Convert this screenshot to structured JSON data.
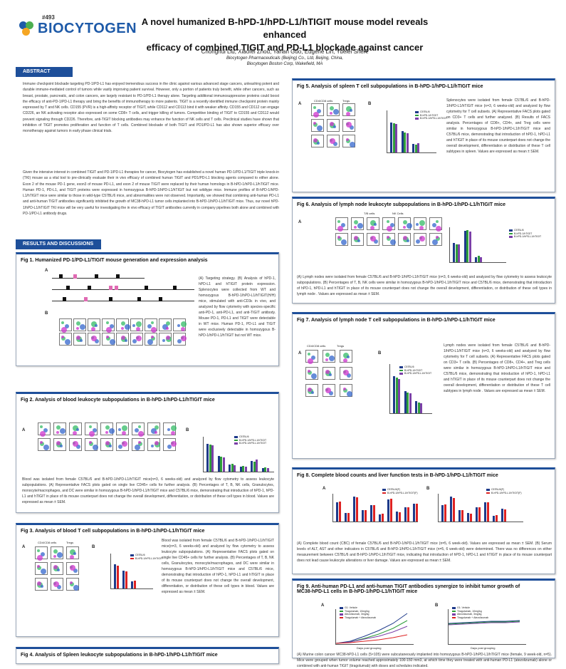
{
  "header": {
    "poster_number": "#493",
    "logo_text": "BIOCYTOGEN",
    "title_line1": "A novel humanized B-hPD-1/hPD-L1/hTIGIT mouse model reveals enhanced",
    "title_line2": "efficacy of combined TIGIT and PD-L1 blockade against cancer",
    "authors": "Chonghui Liu, Xiaofei Zhou, Yanan Guo, Eugene Lin, Yuelei Shen.",
    "affiliation1": "Biocytogen Pharmaceuticals (Beijing) Co., Ltd, Beijing, China,",
    "affiliation2": "Biocytogen Boston Corp, Wakefield, MA"
  },
  "abstract": {
    "heading": "ABSTRACT",
    "para1": "Immune checkpoint blockade targeting PD-1/PD-L1 has enjoyed tremendous success in the clinic against various advanced stage cancers, unleashing potent and durable immune-mediated control of tumors while vastly improving patient survival. However, only a portion of patients truly benefit, while other cancers, such as breast, prostate, pancreatic, and colon cancers, are largely resistant to PD-1/PD-L1 therapy alone. Targeting additional immunosuppressive proteins could boost the efficacy of anti-PD-1/PD-L1 therapy and bring the benefits of immunotherapy to more patients. TIGIT is a recently identified immune checkpoint protein mainly expressed by T and NK cells. CD155 (PVR) is a high-affinity receptor of TIGIT, while CD112 and CD113 bind it with weaker affinity. CD155 and CD112 can engage CD226, an NK activating receptor also expressed on some CD8+ T cells, and trigger killing of tumors. Competitive binding of TIGIT to CD155 and CD112 would prevent signaling through CD226. Therefore, anti-TIGIT blocking antibodies may enhance the function of NK cells and T cells. Preclinical studies have shown that inhibition of TIGIT promotes proliferation and function of T cells. Combined blockade of both TIGIT and PD1/PD-L1 has also shown superior efficacy over monotherapy against tumors in early phase clinical trials.",
    "para2": "Given the intensive interest in combined TIGIT and PD-1/PD-L1 therapies for cancer, Biocytogen has established a novel human PD-1/PD-L1/TIGIT triple knock-in (TKI) mouse as a vital tool to pre-clinically evaluate their in vivo efficacy of combined human TIGIT and PD1/PD-L1 blocking agents compared to either alone. Exon 2 of the mouse PD-1 gene, exon3 of mouse PD-L1, and exon 2 of mouse TIGIT were replaced by their human homologs in B-hPD-1/hPD-L1/hTIGIT mice. Human PD-1, PD-L1, and TIGIT proteins were expressed in homozygous B-hPD-1/hPD-L1/hTIGIT but not wildtype mice. Immune profiles of B-hPD-1/hPD-L1/hTIGIT mice were similar to those in wild-type C57BL/6 mice, and abnormalities were not observed. Importantly, we showed that combining anti-human PD-L1 and anti-human TIGIT antibodies significantly inhibited the growth of MC38-hPD-L1 tumor cells implanted into B-hPD-1/hPD-L1/hTIGIT mice. Thus, our novel hPD-1/hPD-L1/hTIGIT TKI mice will be very useful for investigating the in vivo efficacy of TIGIT antibodies currently in company pipelines both alone and combined with PD-1/PD-L1 antibody drugs."
  },
  "results_heading": "RESULTS AND DISCUSSIONS",
  "common": {
    "groups": [
      "C57BL/6",
      "B-hPD-1/hPD-L1/hTIGIT"
    ],
    "colors": {
      "wt": "#1e3a8a",
      "homo": "#2e9e3a",
      "het": "#7b3fa8",
      "pink": "#e06ab3",
      "red": "#d22",
      "accent": "#1e4f9a"
    },
    "dot_colors": [
      "#3b6",
      "#36c",
      "#c3c"
    ]
  },
  "fig1": {
    "title": "Fig 1. Humanized PD-1/PD-L1/TIGIT mouse generation and expression analysis",
    "text": "(A) Targeting strategy. (B) Analysis of hPD-1, hPD-L1 and hTIGIT protein expression. Splenocytes were collected from WT and homozygous B-hPD-1/hPD-L1/hTIGIT(H/H) mice, stimulated with anti-CD3ε in vivo, and analyzed by flow cytometry with species-specific anti-PD-1, anti-PD-L1, and anti-TIGIT antibody. Mouse PD-1, PD-L1 and TIGIT were detectable in WT mice. Human PD-1, PD-L1 and TIGIT were exclusively detectable in homozygous B-hPD-1/hPD-L1/hTIGIT but not WT mice.",
    "label_a": "A",
    "label_b": "B",
    "genes": [
      "B-hPD-1",
      "B-hPD-L1",
      "B-hTIGIT"
    ],
    "flow_headers": [
      "Anti-CD3ε-stimulated",
      "Anti-CD3ε-stimulated",
      "Anti-CD3ε-stimulated"
    ]
  },
  "fig2": {
    "title": "Fig 2. Analysis of blood leukocyte subpopulations in B-hPD-1/hPD-L1/hTIGIT mice",
    "label_a": "A",
    "label_b": "B",
    "columns": [
      "T/B cells",
      "NK Cells",
      "Dendritic cells",
      "Granulocytes",
      "Monocytes/ Macrophages"
    ],
    "rows": [
      "C57BL/6",
      "B-hPD-1/hPD-L1/ hTIGIT"
    ],
    "yaxis": "% in CD45 cells of blood",
    "categories": [
      "T cells",
      "B cells",
      "NK cells",
      "Granulocytes",
      "DC cells",
      "Monocytes"
    ],
    "legend": [
      "C57BL/6",
      "B-hPD-1/hPD-L1/hTIGIT",
      "B-hPD-1/hPD-L1/hTIGIT"
    ],
    "text": "Blood was isolated from female C57BL/6 and B-hPD-1/hPD-L1/hTIGIT mice(n=3, 6 weeks-old) and analyzed by flow cytometry to assess leukocyte subpopulations. (A) Representative FACS plots gated on single live CD45+ cells for further analysis. (B) Percentages of T, B, NK cells, Granulocytes, monocyte/macrophages, and DC were similar in homozygous B-hPD-1/hPD-L1/hTIGIT mice and C57BL/6 mice, demonstrating that introduction of hPD-1, hPD-L1 and hTIGIT in place of its mouse counterpart does not change the overall development, differentiation, or distribution of these cell types in blood. Values are expressed as mean ± SEM."
  },
  "fig3": {
    "title": "Fig 3. Analysis of blood T cell subpopulations in B-hPD-1/hPD-L1/hTIGIT mice",
    "label_a": "A",
    "label_b": "B",
    "col_headers": [
      "CD4/CD8 cells",
      "Tregs"
    ],
    "legend": [
      "C57BL/6",
      "B-hPD-1/hPD-L1/hTIGIT"
    ],
    "text": "Blood was isolated from female C57BL/6 and B-hPD-1/hPD-L1/hTIGIT mice(n=3, 6 weeks-old) and analyzed by flow cytometry to assess leukocyte subpopulations. (A) Representative FACS plots gated on single live CD45+ cells for further analysis. (B) Percentages of T, B, NK cells, Granulocytes, monocyte/macrophages, and DC were similar in homozygous B-hPD-1/hPD-L1/hTIGIT mice and C57BL/6 mice, demonstrating that introduction of hPD-1, hPD-L1 and hTIGIT in place of its mouse counterpart does not change the overall development, differentiation, or distribution of these cell types in blood. Values are expressed as mean ± SEM."
  },
  "fig4": {
    "title": "Fig 4. Analysis of Spleen leukocyte subpopulations in B-hPD-1/hPD-L1/hTIGIT mice"
  },
  "fig5": {
    "title": "Fig 5. Analysis of spleen T cell subpopulations in B-hPD-1/hPD-L1/hTIGIT mice",
    "label_a": "A",
    "label_b": "B",
    "col_headers": [
      "CD4/CD8 cells",
      "Tregs"
    ],
    "legend": [
      "C57BL/6",
      "B-hPD-1/hTIGIT",
      "B-hPD-1/hPD-L1/hTIGIT"
    ],
    "text": "Splenocytes were isolated from female C57BL/6 and B-hPD-1/hPD-L1/hTIGIT mice (n=3, 6 weeks-old) and analyzed by flow cytometry for T cell subsets. (A) Representative FACS plots gated on CD3+ T cells and further analyzed. (B) Results of FACS analysis. Percentages of CD8+, CD4+, and Treg cells were similar in homozygous B-hPD-1/hPD-L1/hTIGIT mice and C57BL/6 mice, demonstrating that introduction of hPD-1, hPD-L1 and hTIGIT in place of its mouse counterpart does not change the overall development, differentiation or distribution of these T cell subtypes in spleen. Values are expressed as mean ± SEM."
  },
  "fig6": {
    "title": "Fig 6. Analysis of lymph node leukocyte subpopulations in B-hPD-1/hPD-L1/hTIGIT mice",
    "label_a": "A",
    "label_b": "B",
    "col_headers": [
      "T/B cells",
      "NK Cells"
    ],
    "rows": [
      "C57BL/6",
      "B-hPD-1/hPD-L1/ hTIGIT"
    ],
    "legend": [
      "C57BL/6",
      "B-hPD-1/hTIGIT",
      "B-hPD-1/hPD-L1/hTIGIT"
    ],
    "text": "(A) Lymph nodes were isolated from female C57BL/6 and B-hPD-1/hPD-L1/hTIGIT mice (n=3, 6 weeks-old) and analyzed by flow cytometry to assess leukocyte subpopulations. (B) Percentages of T, B, NK cells were similar in homozygous B-hPD-1/hPD-L1/hTIGIT mice and C57BL/6 mice, demonstrating that introduction of hPD-1, hPD-L1 and hTIGIT in place of its mouse counterpart does not change the overall development, differentiation, or distribution of these cell types in lymph node . Values are expressed as mean ± SEM."
  },
  "fig7": {
    "title": "Fig 7. Analysis of lymph node T cell subpopulations in B-hPD-1/hPD-L1/hTIGIT mice",
    "label_a": "A",
    "label_b": "B",
    "col_headers": [
      "CD4/CD8 cells",
      "Tregs"
    ],
    "legend": [
      "C57BL/6",
      "B-hPD-1/hTIGIT",
      "B-hPD-1/hPD-L1/hTIGIT"
    ],
    "text": "Lymph nodes were isolated from female C57BL/6 and B-hPD-1/hPD-L1/hTIGIT mice (n=3, 6 weeks-old) and analyzed by flow cytometry for T cell subsets. (A) Representative FACS plots gated on CD3+ T cells. (B) Percentages of CD8+, CD4+, and Treg cells were similar in homozygous B-hPD-1/hPD-L1/hTIGIT mice and C57BL/6 mice, demonstrating that introduction of hPD-1, hPD-L1 and hTIGIT in place of its mouse counterpart does not change the overall development, differentiation or distribution of these T cell subtypes in lymph node . Values are expressed as mean ± SEM."
  },
  "fig8": {
    "title": "Fig 8. Complete blood counts and liver function tests in B-hPD-1/hPD-L1/hTIGIT mice",
    "label_a": "A",
    "label_b": "B",
    "legend": [
      "C57BL/6(F)",
      "B-hPD-1/hPD-L1/hTIGIT(F)"
    ],
    "text": "(A) Complete blood count (CBC) of female C57BL/6 and B-hPD-1/hPD-L1/hTIGIT mice (n=5, 6 week-old). Values are expressed as mean ± SEM. (B) Serum levels of ALT, AST and other indicators in C57BL/6 and B-hPD-1/hPD-L1/hTIGIT mice (n=5, 6 week-old) were determined. There was no differences on either measurement between C57BL/6 and B-hPD-1/hPD-L1/hTIGIT mice, indicating that introduction of hPD-1, hPD-L1 and hTIGIT in place of its mouse counterpart does not lead cause leukocyte alterations or liver damage. Values are expressed as mean ± SEM."
  },
  "fig9": {
    "title_line1": "Fig 9. Anti-human PD-L1 and anti-human TIGIT antibodies synergize to inhibit tumor growth of",
    "title_line2": "MC38-hPD-L1 cells in B-hPD-1/hPD-L1/hTIGIT mice",
    "label_a": "A",
    "label_b": "B",
    "legend": [
      "G1: Vehicle",
      "Tiragolumab, 10mg/kg",
      "Atezolizumab, 3mg/kg",
      "Tiragolumab + Atezolizumab"
    ],
    "xlabel": "Days post grouping",
    "text": "(A) Murine colon cancer MC38-hPD-L1 cells (5×105) were subcutaneously implanted into homozygous B-hPD-1/hPD-L1/hTIGIT mice (female, 9 week-old, n=5). Mice were grouped when tumor volume reached approximately 100-150 mm3, at which time they were treated with anti-human PD-L1 (atezolizumab) alone or combined with anti-human TIGIT (tiragolumab) with doses and schedules indicated."
  }
}
